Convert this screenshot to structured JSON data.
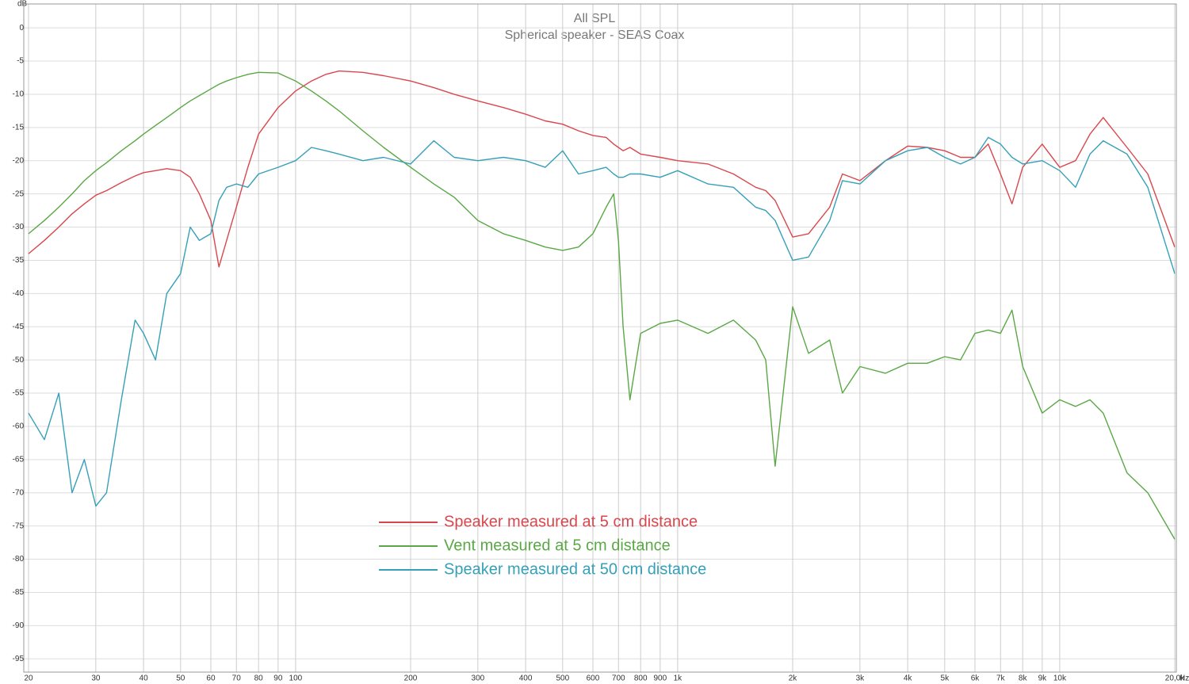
{
  "chart_data": {
    "type": "line",
    "title": "All SPL",
    "subtitle": "Spherical speaker - SEAS Coax",
    "x_label": "Hz",
    "y_label": "dB",
    "log_x": true,
    "grid": true,
    "legend": "bottom",
    "xlim": [
      20,
      20000
    ],
    "ylim": [
      -97,
      3
    ],
    "xticks": [
      20,
      30,
      40,
      50,
      60,
      70,
      80,
      90,
      100,
      200,
      300,
      400,
      500,
      600,
      700,
      800,
      900,
      {
        "value": 1000,
        "label": "1k"
      },
      {
        "value": 2000,
        "label": "2k"
      },
      {
        "value": 3000,
        "label": "3k"
      },
      {
        "value": 4000,
        "label": "4k"
      },
      {
        "value": 5000,
        "label": "5k"
      },
      {
        "value": 6000,
        "label": "6k"
      },
      {
        "value": 7000,
        "label": "7k"
      },
      {
        "value": 8000,
        "label": "8k"
      },
      {
        "value": 9000,
        "label": "9k"
      },
      {
        "value": 10000,
        "label": "10k"
      },
      {
        "value": 20000,
        "label": "20,0k"
      }
    ],
    "yticks": [
      0,
      -5,
      -10,
      -15,
      -20,
      -25,
      -30,
      -35,
      -40,
      -45,
      -50,
      -55,
      -60,
      -65,
      -70,
      -75,
      -80,
      -85,
      -90,
      -95
    ],
    "x": [
      20,
      22,
      24,
      26,
      28,
      30,
      32,
      35,
      38,
      40,
      43,
      46,
      50,
      53,
      56,
      60,
      63,
      66,
      70,
      75,
      80,
      90,
      100,
      110,
      120,
      130,
      150,
      170,
      200,
      230,
      260,
      300,
      350,
      400,
      450,
      500,
      550,
      600,
      650,
      680,
      700,
      720,
      750,
      800,
      900,
      1000,
      1200,
      1400,
      1600,
      1700,
      1800,
      2000,
      2200,
      2500,
      2700,
      3000,
      3500,
      4000,
      4500,
      5000,
      5500,
      6000,
      6500,
      7000,
      7500,
      8000,
      9000,
      10000,
      11000,
      12000,
      13000,
      15000,
      17000,
      20000
    ],
    "series": [
      {
        "name": "Speaker measured at 5 cm distance",
        "color": "#d9474d",
        "values": [
          -34,
          -32,
          -30,
          -28,
          -26.5,
          -25.2,
          -24.5,
          -23.3,
          -22.3,
          -21.8,
          -21.5,
          -21.2,
          -21.5,
          -22.5,
          -25,
          -29,
          -36,
          -32,
          -27,
          -21,
          -16,
          -12,
          -9.5,
          -8,
          -7,
          -6.5,
          -6.7,
          -7.2,
          -8,
          -9,
          -10,
          -11,
          -12,
          -13,
          -14,
          -14.5,
          -15.5,
          -16.2,
          -16.5,
          -17.5,
          -18,
          -18.5,
          -18,
          -19,
          -19.5,
          -20,
          -20.5,
          -22,
          -24,
          -24.5,
          -26,
          -31.5,
          -31,
          -27,
          -22,
          -23,
          -20,
          -17.8,
          -18,
          -18.5,
          -19.5,
          -19.5,
          -17.5,
          -22,
          -26.5,
          -21,
          -17.5,
          -21,
          -20,
          -16,
          -13.5,
          -18,
          -22,
          -33
        ]
      },
      {
        "name": "Vent measured at 5 cm distance",
        "color": "#5aa845",
        "values": [
          -31,
          -29,
          -27,
          -25,
          -23,
          -21.5,
          -20.3,
          -18.5,
          -17,
          -16,
          -14.7,
          -13.5,
          -12,
          -11,
          -10.2,
          -9.2,
          -8.5,
          -8,
          -7.5,
          -7,
          -6.7,
          -6.8,
          -8,
          -9.5,
          -11,
          -12.5,
          -15.5,
          -18,
          -21,
          -23.5,
          -25.5,
          -29,
          -31,
          -32,
          -33,
          -33.5,
          -33,
          -31,
          -27,
          -25,
          -32,
          -45,
          -56,
          -46,
          -44.5,
          -44,
          -46,
          -44,
          -47,
          -50,
          -66,
          -42,
          -49,
          -47,
          -55,
          -51,
          -52,
          -50.5,
          -50.5,
          -49.5,
          -50,
          -46,
          -45.5,
          -46,
          -42.5,
          -51,
          -58,
          -56,
          -57,
          -56,
          -58,
          -67,
          -70,
          -77
        ]
      },
      {
        "name": "Speaker measured at 50 cm distance",
        "color": "#35a0b8",
        "values": [
          -58,
          -62,
          -55,
          -70,
          -65,
          -72,
          -70,
          -56,
          -44,
          -46,
          -50,
          -40,
          -37,
          -30,
          -32,
          -31,
          -26,
          -24,
          -23.5,
          -24,
          -22,
          -21,
          -20,
          -18,
          -18.5,
          -19,
          -20,
          -19.5,
          -20.5,
          -17,
          -19.5,
          -20,
          -19.5,
          -20,
          -21,
          -18.5,
          -22,
          -21.5,
          -21,
          -22,
          -22.5,
          -22.5,
          -22,
          -22,
          -22.5,
          -21.5,
          -23.5,
          -24,
          -27,
          -27.5,
          -29,
          -35,
          -34.5,
          -29,
          -23,
          -23.5,
          -20,
          -18.5,
          -18,
          -19.5,
          -20.5,
          -19.5,
          -16.5,
          -17.5,
          -19.5,
          -20.5,
          -20,
          -21.5,
          -24,
          -19,
          -17,
          -19,
          -24,
          -37
        ]
      }
    ]
  }
}
